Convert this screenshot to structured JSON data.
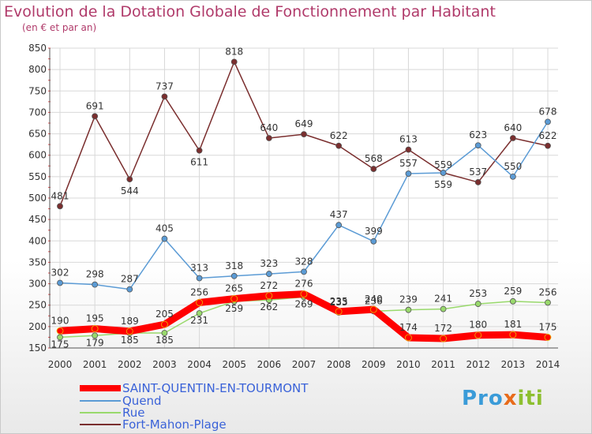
{
  "title": "Evolution de la Dotation Globale de Fonctionnement par Habitant",
  "subtitle": "(en € et par an)",
  "logo": {
    "parts": [
      "Pro",
      "x",
      "iti"
    ],
    "colors": [
      "#3a9bd8",
      "#e86b1a",
      "#8dbf2f"
    ]
  },
  "chart_data": {
    "type": "line",
    "x": [
      "2000",
      "2001",
      "2002",
      "2003",
      "2004",
      "2005",
      "2006",
      "2007",
      "2008",
      "2009",
      "2010",
      "2011",
      "2012",
      "2013",
      "2014"
    ],
    "ylim": [
      150,
      850
    ],
    "yticks": [
      150,
      200,
      250,
      300,
      350,
      400,
      450,
      500,
      550,
      600,
      650,
      700,
      750,
      800,
      850
    ],
    "grid": true,
    "legend_position": "bottom-left",
    "series": [
      {
        "name": "SAINT-QUENTIN-EN-TOURMONT",
        "color": "#ff0000",
        "values": [
          190,
          195,
          189,
          205,
          256,
          265,
          272,
          276,
          235,
          240,
          174,
          172,
          180,
          181,
          175
        ]
      },
      {
        "name": "Quend",
        "color": "#5b9bd5",
        "values": [
          302,
          298,
          287,
          405,
          313,
          318,
          323,
          328,
          437,
          399,
          557,
          559,
          623,
          550,
          678
        ]
      },
      {
        "name": "Rue",
        "color": "#99d96c",
        "values": [
          175,
          179,
          185,
          185,
          231,
          259,
          262,
          269,
          233,
          236,
          239,
          241,
          253,
          259,
          256
        ]
      },
      {
        "name": "Fort-Mahon-Plage",
        "color": "#7a2e2e",
        "values": [
          481,
          691,
          544,
          737,
          611,
          818,
          640,
          649,
          622,
          568,
          613,
          559,
          537,
          640,
          622
        ]
      }
    ]
  }
}
